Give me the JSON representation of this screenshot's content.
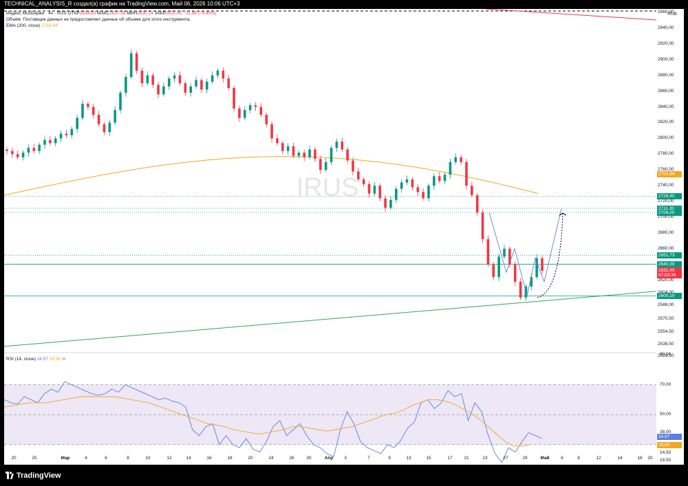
{
  "header": {
    "title": "TECHNICAL_ANALYSIS_R создал(а) график на TradingView.com, Май 06, 2026 10:06 UTC+3"
  },
  "legend": {
    "main_prefix": "Индекс МосБиржи · 4ч · RUS",
    "open_label": "ОТКР",
    "open_value": "2634,93",
    "high_label": "МАКС",
    "high_value": "2637,08",
    "low_label": "МИН",
    "low_value": "2630,24",
    "close_label": "ЗАКР",
    "close_value": "2632,45",
    "change": "−11,98 (−0,45%)",
    "volume_note": "Объём: Поставщик данных не предоставляет данные об объеме для этого инструмента.",
    "ema_label": "EMA (200, close)",
    "ema_value": "2754,94",
    "rsi_label": "RSI (14, close)",
    "rsi_value": "34,97",
    "rsi_ma_value": "29,50",
    "currency": "RUB"
  },
  "watermark": "IRUS",
  "footer": {
    "brand": "TradingView"
  },
  "colors": {
    "up": "#089981",
    "down": "#f23645",
    "ema": "#f5a623",
    "rsi": "#5b7fde",
    "trend": "#2fa84f",
    "band": "#ede7f6"
  },
  "chart_data": [
    {
      "type": "candlestick",
      "ylim": [
        2515,
        2975
      ],
      "yticks": [
        "2523,50",
        "2538,50",
        "2554,50",
        "2570,50",
        "2588,00",
        "2604,00",
        "2620,00",
        "2640,00",
        "2660,00",
        "2680,00",
        "2700,00",
        "2720,00",
        "2740,00",
        "2760,00",
        "2780,00",
        "2800,00",
        "2820,00",
        "2840,00",
        "2860,00",
        "2880,00",
        "2900,00",
        "2920,00",
        "2940,00",
        "2960,00"
      ],
      "x_labels": [
        "20",
        "25",
        "Мар",
        "4",
        "6",
        "8",
        "10",
        "12",
        "14",
        "16",
        "18",
        "20",
        "24",
        "26",
        "30",
        "Апр",
        "3",
        "7",
        "9",
        "13",
        "15",
        "17",
        "21",
        "23",
        "27",
        "29",
        "Май",
        "6",
        "8",
        "12",
        "14",
        "18",
        "20"
      ],
      "closes": [
        2784,
        2780,
        2776,
        2782,
        2788,
        2784,
        2792,
        2798,
        2794,
        2800,
        2806,
        2804,
        2812,
        2826,
        2844,
        2840,
        2830,
        2818,
        2808,
        2820,
        2836,
        2858,
        2878,
        2908,
        2886,
        2870,
        2880,
        2868,
        2856,
        2866,
        2876,
        2880,
        2870,
        2858,
        2866,
        2874,
        2862,
        2872,
        2880,
        2886,
        2876,
        2864,
        2838,
        2826,
        2836,
        2842,
        2840,
        2830,
        2818,
        2800,
        2794,
        2784,
        2790,
        2778,
        2782,
        2776,
        2786,
        2774,
        2760,
        2770,
        2788,
        2796,
        2786,
        2772,
        2758,
        2748,
        2742,
        2730,
        2740,
        2724,
        2712,
        2722,
        2736,
        2744,
        2748,
        2738,
        2732,
        2724,
        2740,
        2752,
        2746,
        2754,
        2770,
        2776,
        2770,
        2740,
        2728,
        2706,
        2672,
        2640,
        2624,
        2650,
        2660,
        2640,
        2618,
        2598,
        2612,
        2624,
        2648,
        2632
      ],
      "price_tags": [
        {
          "label": "2754,94",
          "price": 2754.94,
          "color": "#f5a623"
        },
        {
          "label": "2726,40",
          "price": 2726.4,
          "color": "#089981"
        },
        {
          "label": "2711,30",
          "price": 2711.3,
          "color": "#089981"
        },
        {
          "label": "2706,00",
          "price": 2706.0,
          "color": "#089981"
        },
        {
          "label": "2651,73",
          "price": 2651.73,
          "color": "#089981"
        },
        {
          "label": "2640,39",
          "price": 2640.39,
          "color": "#089981"
        },
        {
          "label": "2632,45",
          "price": 2632.45,
          "color": "#f23645"
        },
        {
          "label": "07:53:36",
          "price": 2626.5,
          "color": "#f23645"
        },
        {
          "label": "2600,19",
          "price": 2600.19,
          "color": "#089981"
        }
      ],
      "horizontal_levels": [
        2726.4,
        2711.3,
        2706.0,
        2651.73
      ],
      "trendline": {
        "from": 2536,
        "to": 2606
      }
    },
    {
      "type": "line",
      "title": "RSI (14, close)",
      "ylim": [
        15,
        92
      ],
      "yticks": [
        "90,00",
        "70,00",
        "50,00",
        "38,00",
        "29,50",
        "24,50",
        "19,50"
      ],
      "band": [
        30,
        70
      ],
      "series": [
        {
          "name": "RSI",
          "values": [
            60,
            58,
            57,
            62,
            60,
            58,
            64,
            67,
            65,
            72,
            70,
            68,
            66,
            64,
            63,
            64,
            67,
            65,
            70,
            68,
            66,
            64,
            62,
            60,
            61,
            59,
            58,
            55,
            40,
            36,
            42,
            44,
            30,
            36,
            30,
            28,
            34,
            27,
            25,
            32,
            42,
            46,
            36,
            40,
            44,
            36,
            30,
            28,
            24,
            22,
            40,
            52,
            44,
            32,
            28,
            26,
            24,
            30,
            28,
            33,
            41,
            45,
            58,
            60,
            54,
            58,
            66,
            62,
            64,
            46,
            58,
            52,
            36,
            24,
            18,
            28,
            25,
            32,
            38,
            36,
            34
          ]
        },
        {
          "name": "RSI-based MA",
          "values": [
            55,
            56,
            57,
            58,
            58,
            58,
            59,
            60,
            61,
            62,
            62,
            62,
            62,
            62,
            61,
            60,
            59,
            58,
            56,
            54,
            52,
            50,
            48,
            46,
            44,
            43,
            42,
            40,
            39,
            38,
            37,
            38,
            39,
            40,
            42,
            42,
            41,
            40,
            39,
            40,
            41,
            42,
            44,
            46,
            48,
            50,
            51,
            53,
            56,
            58,
            60,
            60,
            59,
            57,
            54,
            51,
            47,
            42,
            37,
            32,
            29,
            29,
            30
          ]
        }
      ]
    }
  ]
}
